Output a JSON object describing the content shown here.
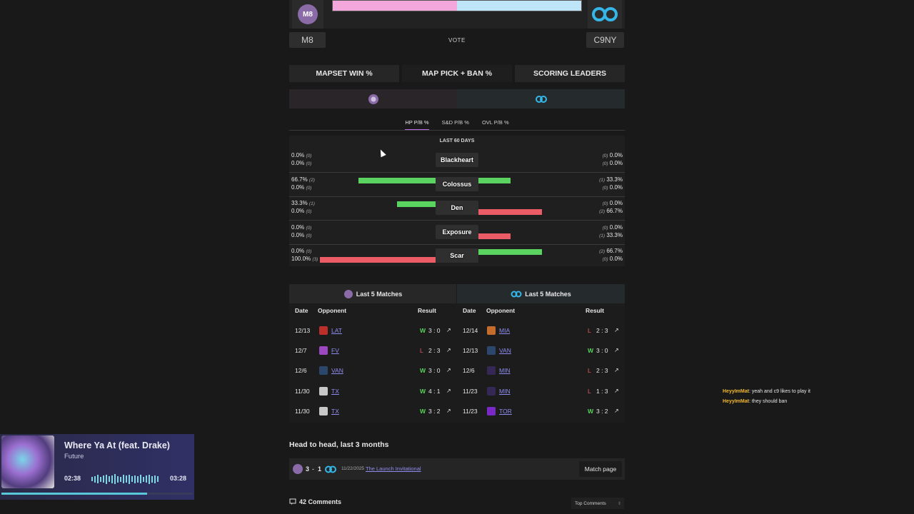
{
  "vote": {
    "team_a": "M8",
    "team_b": "C9NY",
    "label": "VOTE",
    "team_a_share": 0.5,
    "team_a_color": "#f3a8dd",
    "team_b_color": "#bfe5f8"
  },
  "tabs": [
    {
      "label": "MAPSET WIN %"
    },
    {
      "label": "MAP PICK + BAN %",
      "active": true
    },
    {
      "label": "SCORING LEADERS"
    }
  ],
  "subtabs": [
    {
      "label": "HP P/B %",
      "active": true
    },
    {
      "label": "S&D P/B %"
    },
    {
      "label": "OVL P/B %"
    }
  ],
  "map_stats": {
    "caption": "LAST 60 DAYS",
    "rows": [
      {
        "map": "Blackheart",
        "left_pick": "0.0%",
        "left_pick_n": "(0)",
        "left_ban": "0.0%",
        "left_ban_n": "(0)",
        "right_pick": "0.0%",
        "right_pick_n": "(0)",
        "right_ban": "0.0%",
        "right_ban_n": "(0)",
        "left_pick_v": 0,
        "left_ban_v": 0,
        "right_pick_v": 0,
        "right_ban_v": 0
      },
      {
        "map": "Colossus",
        "left_pick": "66.7%",
        "left_pick_n": "(2)",
        "left_ban": "0.0%",
        "left_ban_n": "(0)",
        "right_pick": "33.3%",
        "right_pick_n": "(1)",
        "right_ban": "0.0%",
        "right_ban_n": "(0)",
        "left_pick_v": 66.7,
        "left_ban_v": 0,
        "right_pick_v": 33.3,
        "right_ban_v": 0
      },
      {
        "map": "Den",
        "left_pick": "33.3%",
        "left_pick_n": "(1)",
        "left_ban": "0.0%",
        "left_ban_n": "(0)",
        "right_pick": "0.0%",
        "right_pick_n": "(0)",
        "right_ban": "66.7%",
        "right_ban_n": "(2)",
        "left_pick_v": 33.3,
        "left_ban_v": 0,
        "right_pick_v": 0,
        "right_ban_v": 66.7
      },
      {
        "map": "Exposure",
        "left_pick": "0.0%",
        "left_pick_n": "(0)",
        "left_ban": "0.0%",
        "left_ban_n": "(0)",
        "right_pick": "0.0%",
        "right_pick_n": "(0)",
        "right_ban": "33.3%",
        "right_ban_n": "(1)",
        "left_pick_v": 0,
        "left_ban_v": 0,
        "right_pick_v": 0,
        "right_ban_v": 33.3
      },
      {
        "map": "Scar",
        "left_pick": "0.0%",
        "left_pick_n": "(0)",
        "left_ban": "100.0%",
        "left_ban_n": "(3)",
        "right_pick": "66.7%",
        "right_pick_n": "(2)",
        "right_ban": "0.0%",
        "right_ban_n": "(0)",
        "left_pick_v": 0,
        "left_ban_v": 100,
        "right_pick_v": 66.7,
        "right_ban_v": 0
      }
    ]
  },
  "last_matches": {
    "title": "Last 5 Matches",
    "columns": {
      "date": "Date",
      "opponent": "Opponent",
      "result": "Result"
    },
    "team_a": [
      {
        "date": "12/13",
        "opp": "LAT",
        "wl": "W",
        "score": "3 : 0"
      },
      {
        "date": "12/7",
        "opp": "FV",
        "wl": "L",
        "score": "2 : 3"
      },
      {
        "date": "12/6",
        "opp": "VAN",
        "wl": "W",
        "score": "3 : 0"
      },
      {
        "date": "11/30",
        "opp": "TX",
        "wl": "W",
        "score": "4 : 1"
      },
      {
        "date": "11/30",
        "opp": "TX",
        "wl": "W",
        "score": "3 : 2"
      }
    ],
    "team_b": [
      {
        "date": "12/14",
        "opp": "MIA",
        "wl": "L",
        "score": "2 : 3"
      },
      {
        "date": "12/13",
        "opp": "VAN",
        "wl": "W",
        "score": "3 : 0"
      },
      {
        "date": "12/6",
        "opp": "MIN",
        "wl": "L",
        "score": "2 : 3"
      },
      {
        "date": "11/23",
        "opp": "MIN",
        "wl": "L",
        "score": "1 : 3"
      },
      {
        "date": "11/23",
        "opp": "TOR",
        "wl": "W",
        "score": "3 : 2"
      }
    ]
  },
  "head_to_head": {
    "title": "Head to head, last 3 months",
    "score_a": "3",
    "score_sep": "-",
    "score_b": "1",
    "date": "11/22/2025",
    "event": "The Launch Invitational",
    "button": "Match page"
  },
  "comments": {
    "label": "42 Comments",
    "sort": "Top Comments"
  },
  "chat": [
    {
      "user": "HeyyImMat",
      "text": ": yeah and c9 likes to play it"
    },
    {
      "user": "HeyyImMat",
      "text": ": they should ban"
    }
  ],
  "now_playing": {
    "title": "Where Ya At (feat. Drake)",
    "artist": "Future",
    "elapsed": "02:38",
    "total": "03:28",
    "progress": 0.76
  },
  "colors": {
    "win": "#57d45c",
    "loss": "#ec5c67",
    "pick_bar": "#5ad361",
    "ban_bar": "#ec5c67",
    "link": "#8f8cf0"
  }
}
